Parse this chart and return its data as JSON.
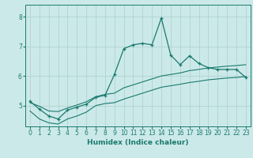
{
  "xlabel": "Humidex (Indice chaleur)",
  "bg_color": "#cce9e9",
  "line_color": "#1a7a6e",
  "xlim": [
    -0.5,
    23.5
  ],
  "ylim": [
    4.3,
    8.4
  ],
  "yticks": [
    5,
    6,
    7,
    8
  ],
  "xticks": [
    0,
    1,
    2,
    3,
    4,
    5,
    6,
    7,
    8,
    9,
    10,
    11,
    12,
    13,
    14,
    15,
    16,
    17,
    18,
    19,
    20,
    21,
    22,
    23
  ],
  "main_x": [
    0,
    1,
    2,
    3,
    4,
    5,
    6,
    7,
    8,
    9,
    10,
    11,
    12,
    13,
    14,
    15,
    16,
    17,
    18,
    19,
    20,
    21,
    22,
    23
  ],
  "main_y": [
    5.15,
    4.88,
    4.65,
    4.55,
    4.85,
    4.95,
    5.05,
    5.28,
    5.35,
    6.05,
    6.92,
    7.05,
    7.1,
    7.05,
    7.95,
    6.7,
    6.38,
    6.68,
    6.42,
    6.28,
    6.22,
    6.22,
    6.22,
    5.95
  ],
  "upper_x": [
    0,
    1,
    2,
    3,
    4,
    5,
    6,
    7,
    8,
    9,
    10,
    11,
    12,
    13,
    14,
    15,
    16,
    17,
    18,
    19,
    20,
    21,
    22,
    23
  ],
  "upper_y": [
    5.1,
    4.98,
    4.82,
    4.8,
    4.92,
    5.02,
    5.13,
    5.3,
    5.38,
    5.42,
    5.6,
    5.7,
    5.8,
    5.9,
    6.0,
    6.05,
    6.1,
    6.18,
    6.22,
    6.27,
    6.3,
    6.33,
    6.35,
    6.38
  ],
  "lower_x": [
    0,
    1,
    2,
    3,
    4,
    5,
    6,
    7,
    8,
    9,
    10,
    11,
    12,
    13,
    14,
    15,
    16,
    17,
    18,
    19,
    20,
    21,
    22,
    23
  ],
  "lower_y": [
    4.82,
    4.55,
    4.42,
    4.38,
    4.55,
    4.65,
    4.78,
    5.0,
    5.07,
    5.1,
    5.22,
    5.32,
    5.42,
    5.52,
    5.62,
    5.67,
    5.72,
    5.78,
    5.82,
    5.87,
    5.9,
    5.93,
    5.95,
    5.98
  ]
}
